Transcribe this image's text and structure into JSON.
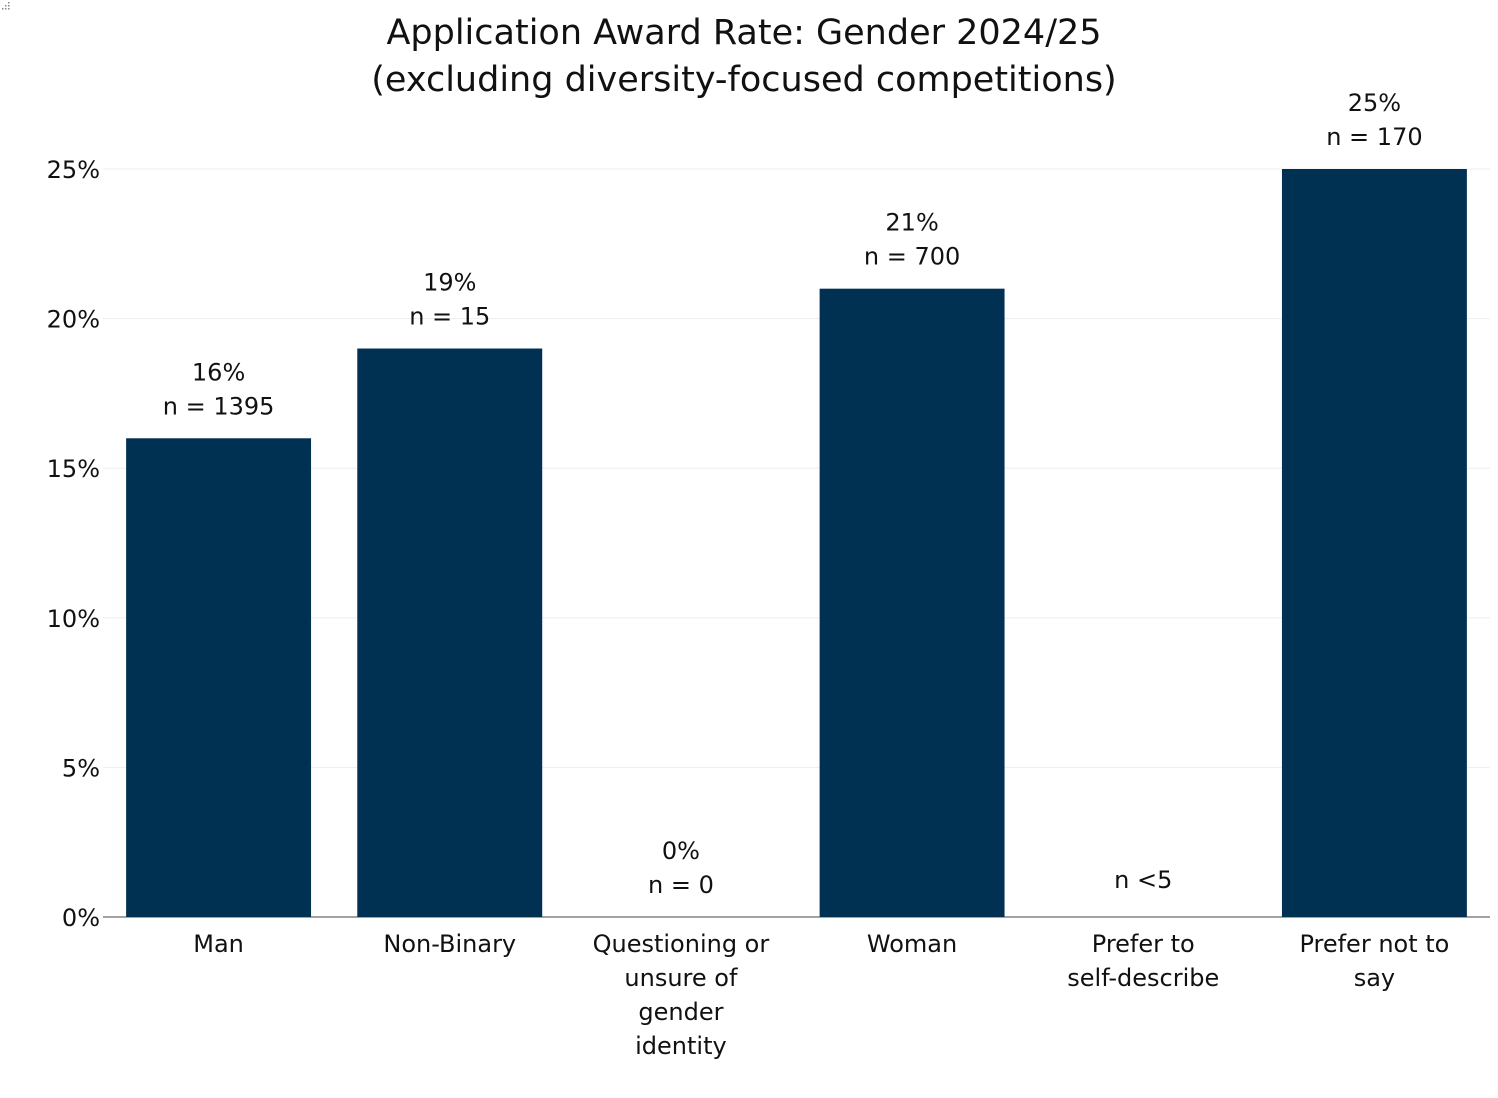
{
  "chart_data": {
    "type": "bar",
    "title": [
      "Application Award Rate: Gender 2024/25",
      "(excluding diversity-focused competitions)"
    ],
    "xlabel": "",
    "ylabel": "",
    "ylim": [
      0,
      25
    ],
    "yticks": [
      "0%",
      "5%",
      "10%",
      "15%",
      "20%",
      "25%"
    ],
    "ytick_values": [
      0,
      5,
      10,
      15,
      20,
      25
    ],
    "grid": true,
    "bar_color": "#003153",
    "categories": [
      [
        "Man"
      ],
      [
        "Non-Binary"
      ],
      [
        "Questioning or",
        "unsure of",
        "gender",
        "identity"
      ],
      [
        "Woman"
      ],
      [
        "Prefer to",
        "self-describe"
      ],
      [
        "Prefer not to",
        "say"
      ]
    ],
    "values": [
      16,
      19,
      0,
      21,
      null,
      25
    ],
    "data_labels": [
      [
        "16%",
        "n = 1395"
      ],
      [
        "19%",
        "n = 15"
      ],
      [
        "0%",
        "n = 0"
      ],
      [
        "21%",
        "n = 700"
      ],
      [
        "n <5"
      ],
      [
        "25%",
        "n = 170"
      ]
    ]
  }
}
